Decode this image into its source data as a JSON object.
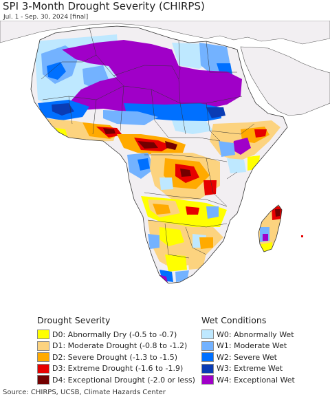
{
  "title": "SPI 3-Month Drought Severity (CHIRPS)",
  "subtitle": "Jul. 1 - Sep. 30, 2024 [final]",
  "colors": {
    "ocean": "#ffffff",
    "land_no_data": "#f2eff2",
    "d0": "#ffff00",
    "d1": "#fcd37f",
    "d2": "#ffaa00",
    "d3": "#e60000",
    "d4": "#730000",
    "w0": "#bee8ff",
    "w1": "#73b2ff",
    "w2": "#0070ff",
    "w3": "#0a3cb4",
    "w4": "#a000c8"
  },
  "legend": {
    "drought": {
      "heading": "Drought Severity",
      "items": [
        {
          "code": "d0",
          "label": "D0: Abnormally Dry (-0.5 to -0.7)"
        },
        {
          "code": "d1",
          "label": "D1: Moderate Drought (-0.8 to -1.2)"
        },
        {
          "code": "d2",
          "label": "D2: Severe Drought (-1.3 to -1.5)"
        },
        {
          "code": "d3",
          "label": "D3: Extreme Drought (-1.6 to -1.9)"
        },
        {
          "code": "d4",
          "label": "D4: Exceptional Drought (-2.0 or less)"
        }
      ]
    },
    "wet": {
      "heading": "Wet Conditions",
      "items": [
        {
          "code": "w0",
          "label": "W0: Abnormally Wet"
        },
        {
          "code": "w1",
          "label": "W1: Moderate Wet"
        },
        {
          "code": "w2",
          "label": "W2: Severe Wet"
        },
        {
          "code": "w3",
          "label": "W3: Extreme Wet"
        },
        {
          "code": "w4",
          "label": "W4: Exceptional Wet"
        }
      ]
    }
  },
  "source": "Source: CHIRPS, UCSB, Climate Hazards Center"
}
